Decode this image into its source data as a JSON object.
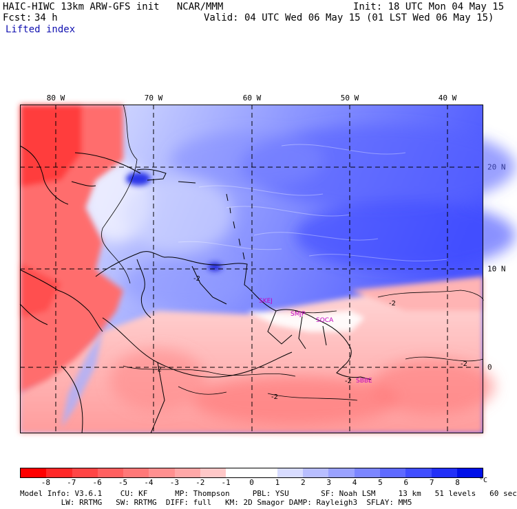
{
  "header": {
    "title_left": "HAIC-HIWC 13km ARW-GFS init   NCAR/MMM",
    "init": "Init: 18 UTC Mon 04 May 15",
    "fcst_label": "Fcst:",
    "fcst_value": "34 h",
    "valid": "Valid: 04 UTC Wed 06 May 15 (01 LST Wed 06 May 15)",
    "field_name": "Lifted index"
  },
  "map": {
    "longitude_labels": [
      "80 W",
      "70 W",
      "60 W",
      "50 W",
      "40 W"
    ],
    "latitude_labels": [
      "20 N",
      "10 N",
      "0"
    ],
    "stations": [
      "SKEJ",
      "SMJP",
      "SOCA",
      "SBBE"
    ],
    "contour_labels": [
      "-2",
      "-2",
      "-2",
      "-2",
      "-2",
      "-2"
    ],
    "colors": {
      "coastline": "#000000",
      "grid_dash": "#000000",
      "station": "#c000c0"
    }
  },
  "colorbar": {
    "ticks": [
      "-8",
      "-7",
      "-6",
      "-5",
      "-4",
      "-3",
      "-2",
      "-1",
      "0",
      "1",
      "2",
      "3",
      "4",
      "5",
      "6",
      "7",
      "8"
    ],
    "unit": "°C",
    "colors": [
      "#ff0000",
      "#ff2828",
      "#ff4545",
      "#ff6060",
      "#ff7878",
      "#ff9090",
      "#ffa8a8",
      "#ffc8c8",
      "#ffffff",
      "#ffffff",
      "#d8dcff",
      "#b8beff",
      "#9aa2ff",
      "#7c86ff",
      "#5e6aff",
      "#404eff",
      "#2230f8",
      "#0010e8"
    ]
  },
  "footer": {
    "line1": "Model Info: V3.6.1    CU: KF      MP: Thompson     PBL: YSU       SF: Noah LSM     13 km   51 levels   60 sec",
    "line2": "         LW: RRTMG   SW: RRTMG  DIFF: full   KM: 2D Smagor DAMP: Rayleigh3  SFLAY: MM5"
  }
}
